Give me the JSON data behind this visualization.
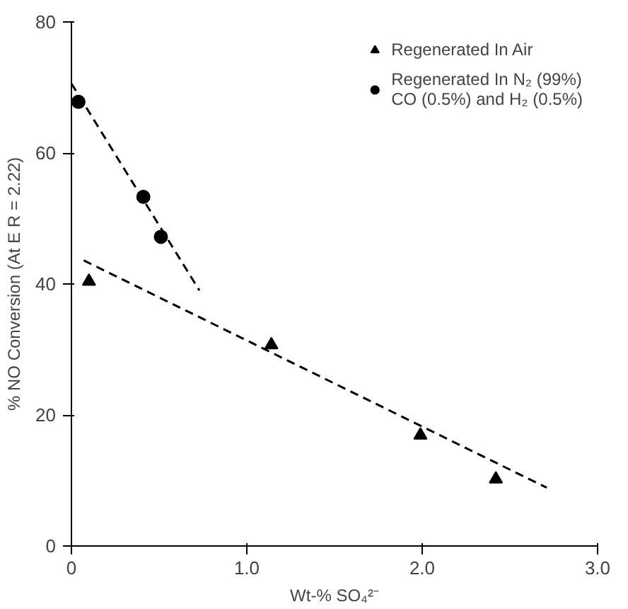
{
  "chart_data": {
    "type": "scatter",
    "xlabel": "Wt-% SO₄²⁻",
    "ylabel": "% NO Conversion (At E R = 2.22)",
    "xlim": [
      0,
      3.0
    ],
    "ylim": [
      0,
      80
    ],
    "xticks": [
      0,
      {
        "value": 1,
        "label": "1.0"
      },
      {
        "value": 2,
        "label": "2.0"
      },
      {
        "value": 3,
        "label": "3.0"
      }
    ],
    "yticks": [
      0,
      20,
      40,
      60,
      80
    ],
    "grid": false,
    "legend": "top right",
    "series": [
      {
        "name": "Regenerated In Air",
        "color": "#000000",
        "marker": "triangle",
        "x": [
          0.1,
          1.14,
          1.99,
          2.42
        ],
        "values": [
          40.4,
          30.7,
          16.9,
          10.2
        ]
      },
      {
        "name": "Regenerated In N₂ (99%)\nCO (0.5%) and H₂ (0.5%)",
        "color": "#000000",
        "marker": "circle",
        "x": [
          0.04,
          0.41,
          0.51
        ],
        "values": [
          67.8,
          53.3,
          47.2
        ]
      },
      {
        "type": "line",
        "line_style": "dashed",
        "color": "#000000",
        "x": [
          0.07,
          2.71
        ],
        "values": [
          43.6,
          8.9
        ]
      },
      {
        "type": "line",
        "line_style": "dashed",
        "color": "#000000",
        "x": [
          0.0,
          0.73
        ],
        "values": [
          70.6,
          39.0
        ]
      }
    ]
  }
}
